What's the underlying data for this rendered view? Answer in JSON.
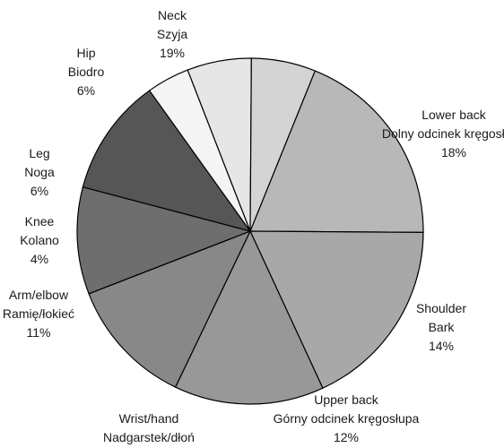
{
  "chart_data": {
    "type": "pie",
    "title": "",
    "legend": "none",
    "slices": [
      {
        "label_en": "Neck",
        "label_pl": "Szyja",
        "value": 19,
        "value_label": "19%",
        "color": "#b8b8b8"
      },
      {
        "label_en": "Lower back",
        "label_pl": "Dolny odcinek kręgosłupa",
        "value": 18,
        "value_label": "18%",
        "color": "#a8a8a8"
      },
      {
        "label_en": "Shoulder",
        "label_pl": "Bark",
        "value": 14,
        "value_label": "14%",
        "color": "#989898"
      },
      {
        "label_en": "Upper back",
        "label_pl": "Górny odcinek kręgosłupa",
        "value": 12,
        "value_label": "12%",
        "color": "#888888"
      },
      {
        "label_en": "Wrist/hand",
        "label_pl": "Nadgarstek/dłoń",
        "value": 10,
        "value_label": "10%",
        "color": "#6e6e6e"
      },
      {
        "label_en": "Arm/elbow",
        "label_pl": "Ramię/łokieć",
        "value": 11,
        "value_label": "11%",
        "color": "#565656"
      },
      {
        "label_en": "Knee",
        "label_pl": "Kolano",
        "value": 4,
        "value_label": "4%",
        "color": "#f4f4f4"
      },
      {
        "label_en": "Leg",
        "label_pl": "Noga",
        "value": 6,
        "value_label": "6%",
        "color": "#e6e6e6"
      },
      {
        "label_en": "Hip",
        "label_pl": "Biodro",
        "value": 6,
        "value_label": "6%",
        "color": "#d4d4d4"
      }
    ]
  }
}
